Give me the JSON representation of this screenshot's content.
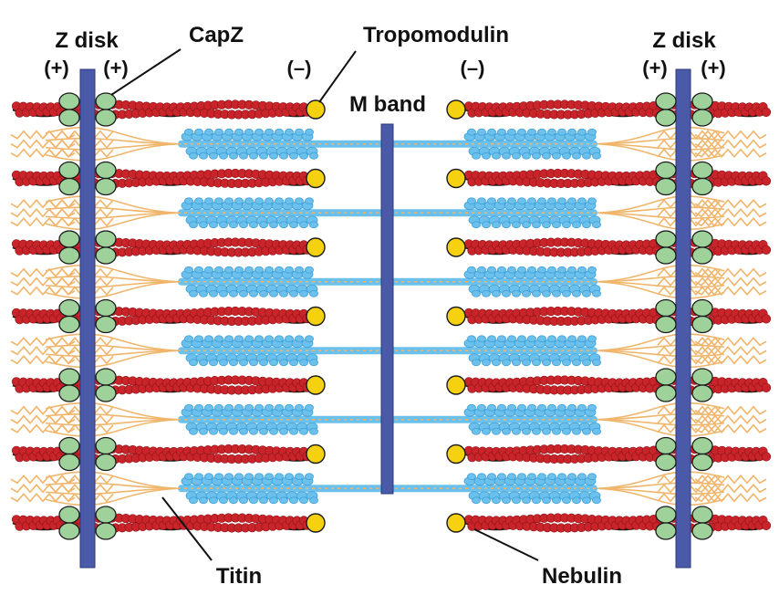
{
  "labels": {
    "z_disk_left": "Z disk",
    "z_disk_right": "Z disk",
    "capz": "CapZ",
    "tropomodulin": "Tropomodulin",
    "m_band": "M band",
    "titin": "Titin",
    "nebulin": "Nebulin"
  },
  "polarity": {
    "left_outer": "(+)",
    "left_inner": "(+)",
    "left_minus": "(–)",
    "right_minus": "(–)",
    "right_inner": "(+)",
    "right_outer": "(+)"
  },
  "structure": {
    "thin_filament_rows": 7,
    "thick_filament_rows": 6
  },
  "colors": {
    "actin": "#c8242a",
    "actin_highlight": "#e5483d",
    "nebulin_strand": "#1a1a1a",
    "capz": "#9fd29a",
    "tropomodulin": "#f5d10f",
    "z_disk": "#4b5aa8",
    "m_band": "#4b5aa8",
    "myosin": "#6cc0ec",
    "myosin_core": "#3d9fd8",
    "titin": "#f0b56a"
  }
}
